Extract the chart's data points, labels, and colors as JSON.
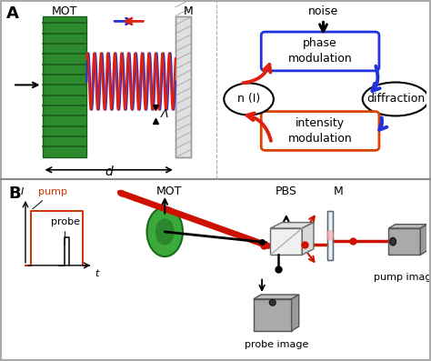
{
  "fig_width": 4.74,
  "fig_height": 3.97,
  "dpi": 100,
  "bg_color": "#ffffff",
  "border_color": "#aaaaaa",
  "panel_A_label": "A",
  "panel_B_label": "B",
  "MOT_label": "MOT",
  "M_label": "M",
  "d_label": "d",
  "Lambda_label": "Λ",
  "noise_label": "noise",
  "phase_mod_label": "phase\nmodulation",
  "intensity_mod_label": "intensity\nmodulation",
  "diffraction_label": "diffraction",
  "n_I_label": "n (I)",
  "PBS_label": "PBS",
  "pump_label": "pump",
  "probe_label": "probe",
  "probe_image_label": "probe image",
  "pump_image_label": "pump image",
  "I_label": "I",
  "t_label": "t",
  "MOT_B_label": "MOT",
  "M_B_label": "M",
  "blue_color": "#2233dd",
  "red_color": "#dd2211",
  "orange_red": "#dd4400",
  "green_mot": "#2d8a2d",
  "green_mot_edge": "#1a5c1a",
  "gray_mirror": "#c8c8c8",
  "gray_box": "#999999",
  "black": "#000000",
  "arrow_blue": "#2233dd",
  "arrow_red": "#dd2211"
}
